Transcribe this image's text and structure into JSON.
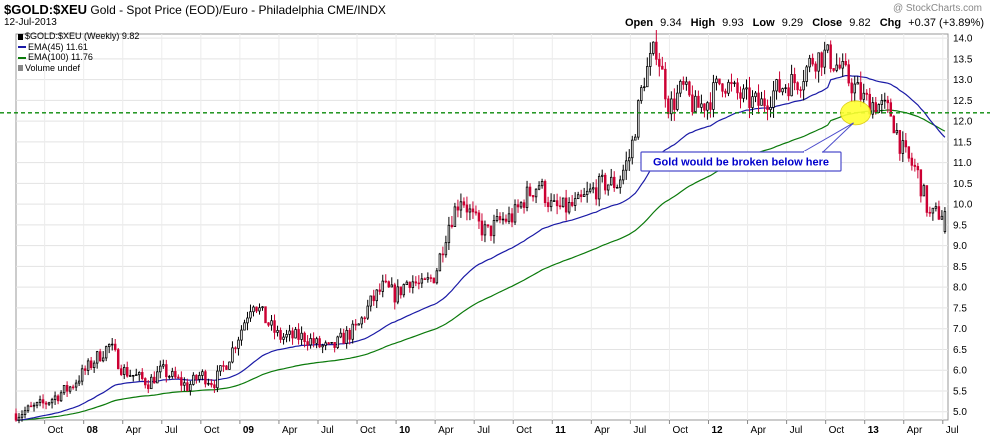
{
  "header": {
    "symbol": "$GOLD:$XEU",
    "description": "Gold - Spot Price (EOD)/Euro - Philadelphia",
    "exchange": "CME/INDX",
    "date": "12-Jul-2013",
    "open_label": "Open",
    "open": "9.34",
    "high_label": "High",
    "high": "9.93",
    "low_label": "Low",
    "low": "9.29",
    "close_label": "Close",
    "close": "9.82",
    "chg_label": "Chg",
    "chg": "+0.37 (+3.89%)",
    "brand": "@ StockCharts.com"
  },
  "legend": {
    "series": "$GOLD:$XEU (Weekly) 9.82",
    "ema45": "EMA(45) 11.61",
    "ema100": "EMA(100) 11.76",
    "volume": "Volume undef"
  },
  "annotation": {
    "text": "Gold would be broken below here",
    "support_level": 12.2
  },
  "colors": {
    "up": "#000000",
    "down": "#cc0033",
    "ema45": "#1a1aa6",
    "ema100": "#0b7a0b",
    "support": "#0a8a0a",
    "highlight": "#ffff33",
    "callout_border": "#4d4dcc",
    "callout_text": "#0000cc"
  },
  "chart_data": {
    "type": "candlestick",
    "title": "$GOLD:$XEU Gold - Spot Price (EOD)/Euro - Philadelphia",
    "frequency": "weekly",
    "x_range": [
      "2007-08",
      "2013-07"
    ],
    "ylim": [
      4.8,
      14.1
    ],
    "y_ticks": [
      5.0,
      5.5,
      6.0,
      6.5,
      7.0,
      7.5,
      8.0,
      8.5,
      9.0,
      9.5,
      10.0,
      10.5,
      11.0,
      11.5,
      12.0,
      12.5,
      13.0,
      13.5,
      14.0
    ],
    "x_ticks": [
      "Oct",
      "08",
      "Apr",
      "Jul",
      "Oct",
      "09",
      "Apr",
      "Jul",
      "Oct",
      "10",
      "Apr",
      "Jul",
      "Oct",
      "11",
      "Apr",
      "Jul",
      "Oct",
      "12",
      "Apr",
      "Jul",
      "Oct",
      "13",
      "Apr",
      "Jul"
    ],
    "y_axis_position": "right",
    "grid": true,
    "legend_position": "top-left",
    "price_path": [
      [
        "2007-08",
        4.95
      ],
      [
        "2007-10",
        5.2
      ],
      [
        "2007-12",
        5.6
      ],
      [
        "2008-02",
        6.3
      ],
      [
        "2008-03",
        6.6
      ],
      [
        "2008-04",
        6.0
      ],
      [
        "2008-06",
        5.7
      ],
      [
        "2008-07",
        6.0
      ],
      [
        "2008-09",
        5.6
      ],
      [
        "2008-10",
        5.9
      ],
      [
        "2008-11",
        5.7
      ],
      [
        "2008-12",
        6.2
      ],
      [
        "2009-01",
        6.9
      ],
      [
        "2009-02",
        7.7
      ],
      [
        "2009-03",
        7.2
      ],
      [
        "2009-04",
        6.8
      ],
      [
        "2009-06",
        6.8
      ],
      [
        "2009-07",
        6.6
      ],
      [
        "2009-08",
        6.5
      ],
      [
        "2009-09",
        6.8
      ],
      [
        "2009-10",
        7.0
      ],
      [
        "2009-11",
        7.6
      ],
      [
        "2009-12",
        8.0
      ],
      [
        "2010-01",
        7.8
      ],
      [
        "2010-02",
        8.2
      ],
      [
        "2010-03",
        8.0
      ],
      [
        "2010-04",
        8.3
      ],
      [
        "2010-05",
        9.5
      ],
      [
        "2010-06",
        10.2
      ],
      [
        "2010-07",
        9.6
      ],
      [
        "2010-08",
        9.3
      ],
      [
        "2010-09",
        9.6
      ],
      [
        "2010-10",
        9.7
      ],
      [
        "2010-11",
        10.2
      ],
      [
        "2010-12",
        10.5
      ],
      [
        "2011-01",
        9.9
      ],
      [
        "2011-02",
        9.9
      ],
      [
        "2011-03",
        10.0
      ],
      [
        "2011-04",
        10.3
      ],
      [
        "2011-05",
        10.5
      ],
      [
        "2011-06",
        10.5
      ],
      [
        "2011-07",
        11.2
      ],
      [
        "2011-08",
        13.0
      ],
      [
        "2011-09",
        13.8
      ],
      [
        "2011-10",
        12.3
      ],
      [
        "2011-11",
        12.8
      ],
      [
        "2011-12",
        12.3
      ],
      [
        "2012-01",
        12.5
      ],
      [
        "2012-02",
        13.0
      ],
      [
        "2012-03",
        12.7
      ],
      [
        "2012-04",
        12.5
      ],
      [
        "2012-05",
        12.4
      ],
      [
        "2012-06",
        12.7
      ],
      [
        "2012-07",
        12.9
      ],
      [
        "2012-08",
        13.0
      ],
      [
        "2012-09",
        13.5
      ],
      [
        "2012-10",
        13.6
      ],
      [
        "2012-11",
        13.3
      ],
      [
        "2012-12",
        12.9
      ],
      [
        "2013-01",
        12.5
      ],
      [
        "2013-02",
        12.4
      ],
      [
        "2013-03",
        12.2
      ],
      [
        "2013-04",
        11.2
      ],
      [
        "2013-05",
        10.8
      ],
      [
        "2013-06",
        9.7
      ],
      [
        "2013-07",
        9.82
      ]
    ],
    "series": [
      {
        "name": "EMA(45)",
        "last": 11.61
      },
      {
        "name": "EMA(100)",
        "last": 11.76
      }
    ]
  }
}
